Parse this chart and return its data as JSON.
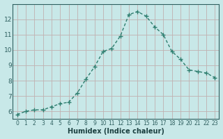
{
  "x": [
    0,
    1,
    2,
    3,
    4,
    5,
    6,
    7,
    8,
    9,
    10,
    11,
    12,
    13,
    14,
    15,
    16,
    17,
    18,
    19,
    20,
    21,
    22,
    23
  ],
  "y": [
    5.8,
    6.0,
    6.1,
    6.1,
    6.3,
    6.5,
    6.6,
    7.2,
    8.1,
    8.9,
    9.9,
    10.1,
    10.9,
    12.3,
    12.5,
    12.2,
    11.5,
    11.0,
    9.9,
    9.4,
    8.7,
    8.6,
    8.5,
    8.2
  ],
  "xlabel": "Humidex (Indice chaleur)",
  "ylim": [
    5.5,
    13.0
  ],
  "xlim": [
    -0.5,
    23.5
  ],
  "yticks": [
    6,
    7,
    8,
    9,
    10,
    11,
    12
  ],
  "xticks": [
    0,
    1,
    2,
    3,
    4,
    5,
    6,
    7,
    8,
    9,
    10,
    11,
    12,
    13,
    14,
    15,
    16,
    17,
    18,
    19,
    20,
    21,
    22,
    23
  ],
  "line_color": "#2e7d6e",
  "marker": "+",
  "bg_color": "#c8e8e8",
  "grid_color": "#c0b0b0",
  "tick_label_color": "#2e5f5f",
  "xlabel_color": "#1a3f3f"
}
